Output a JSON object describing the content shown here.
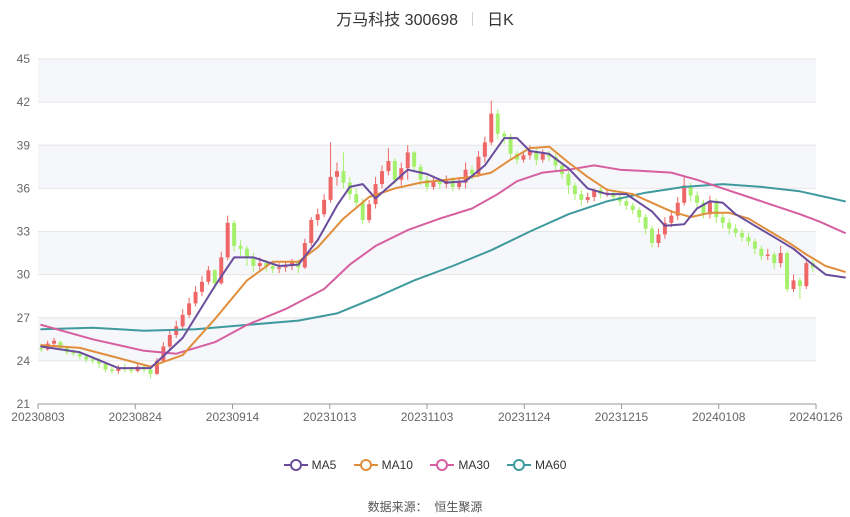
{
  "chart_data": {
    "type": "candlestick",
    "title": "万马科技 300698",
    "subtitle": "日K",
    "source_label": "数据来源：",
    "source_value": "恒生聚源",
    "ylim": [
      21,
      45
    ],
    "yticks": [
      21,
      24,
      27,
      30,
      33,
      36,
      39,
      42,
      45
    ],
    "xticks": [
      "20230803",
      "20230824",
      "20230914",
      "20231013",
      "20231103",
      "20231124",
      "20231215",
      "20240108",
      "20240126"
    ],
    "colors": {
      "up": "#ee6666",
      "down": "#a4f06a",
      "MA5": "#6a4c9c",
      "MA10": "#e08e3c",
      "MA30": "#d65fa0",
      "MA60": "#3f9a9e",
      "grid": "#e6e6e6",
      "band": "#f6f7fb"
    },
    "candles": [
      [
        24.9,
        24.8,
        25.2,
        24.6
      ],
      [
        24.8,
        25.2,
        25.4,
        24.7
      ],
      [
        25.2,
        25.4,
        25.6,
        25.0
      ],
      [
        25.3,
        24.9,
        25.4,
        24.8
      ],
      [
        24.9,
        24.6,
        25.0,
        24.4
      ],
      [
        24.6,
        24.5,
        24.8,
        24.3
      ],
      [
        24.5,
        24.3,
        24.7,
        24.1
      ],
      [
        24.3,
        24.1,
        24.5,
        23.9
      ],
      [
        24.1,
        24.0,
        24.3,
        23.8
      ],
      [
        24.0,
        23.8,
        24.2,
        23.5
      ],
      [
        23.8,
        23.4,
        23.9,
        23.2
      ],
      [
        23.4,
        23.3,
        23.6,
        23.1
      ],
      [
        23.3,
        23.5,
        23.7,
        23.1
      ],
      [
        23.5,
        23.4,
        23.8,
        23.2
      ],
      [
        23.4,
        23.3,
        23.6,
        23.1
      ],
      [
        23.3,
        23.6,
        23.9,
        23.2
      ],
      [
        23.6,
        23.4,
        23.8,
        23.2
      ],
      [
        23.4,
        23.1,
        23.5,
        22.8
      ],
      [
        23.1,
        24.0,
        24.2,
        23.0
      ],
      [
        24.0,
        25.0,
        25.3,
        23.9
      ],
      [
        25.0,
        25.8,
        26.2,
        24.8
      ],
      [
        25.8,
        26.4,
        26.8,
        25.6
      ],
      [
        26.4,
        27.2,
        27.6,
        26.2
      ],
      [
        27.2,
        28.0,
        28.4,
        27.0
      ],
      [
        28.0,
        28.8,
        29.2,
        27.8
      ],
      [
        28.8,
        29.5,
        29.9,
        28.5
      ],
      [
        29.5,
        30.3,
        30.6,
        29.3
      ],
      [
        30.3,
        29.4,
        30.4,
        29.0
      ],
      [
        29.4,
        31.2,
        31.6,
        29.3
      ],
      [
        31.2,
        33.6,
        34.1,
        31.0
      ],
      [
        33.6,
        32.0,
        33.8,
        31.6
      ],
      [
        32.0,
        31.8,
        32.4,
        31.3
      ],
      [
        31.8,
        31.2,
        32.0,
        30.6
      ],
      [
        31.2,
        30.6,
        31.5,
        30.2
      ],
      [
        30.6,
        30.8,
        31.2,
        30.3
      ],
      [
        30.8,
        30.6,
        31.0,
        30.2
      ],
      [
        30.6,
        30.4,
        30.9,
        30.1
      ],
      [
        30.4,
        30.5,
        30.8,
        30.1
      ],
      [
        30.5,
        30.6,
        30.9,
        30.2
      ],
      [
        30.6,
        30.9,
        31.1,
        30.3
      ],
      [
        30.9,
        30.5,
        31.0,
        30.1
      ],
      [
        30.5,
        32.2,
        32.5,
        30.4
      ],
      [
        32.2,
        33.8,
        34.0,
        32.0
      ],
      [
        33.8,
        34.2,
        34.6,
        33.4
      ],
      [
        34.2,
        35.2,
        35.6,
        34.0
      ],
      [
        35.2,
        36.8,
        39.2,
        35.0
      ],
      [
        36.8,
        37.2,
        37.8,
        36.2
      ],
      [
        37.2,
        36.4,
        38.5,
        36.0
      ],
      [
        36.4,
        35.6,
        36.8,
        35.2
      ],
      [
        35.6,
        35.0,
        36.0,
        34.6
      ],
      [
        35.0,
        33.8,
        35.3,
        33.5
      ],
      [
        33.8,
        34.9,
        35.2,
        33.6
      ],
      [
        34.9,
        36.3,
        36.8,
        34.6
      ],
      [
        36.3,
        37.2,
        37.6,
        36.0
      ],
      [
        37.2,
        37.9,
        38.8,
        36.9
      ],
      [
        37.9,
        36.6,
        38.1,
        36.3
      ],
      [
        36.6,
        37.4,
        37.8,
        36.2
      ],
      [
        37.4,
        38.5,
        39.0,
        36.6
      ],
      [
        38.5,
        37.5,
        38.6,
        37.1
      ],
      [
        37.5,
        36.6,
        37.7,
        36.2
      ],
      [
        36.6,
        36.1,
        36.9,
        35.8
      ],
      [
        36.1,
        36.5,
        36.9,
        35.9
      ],
      [
        36.5,
        36.3,
        36.7,
        36.0
      ],
      [
        36.3,
        36.6,
        36.9,
        36.0
      ],
      [
        36.6,
        36.1,
        36.8,
        35.8
      ],
      [
        36.1,
        36.4,
        36.8,
        35.9
      ],
      [
        36.4,
        37.3,
        37.8,
        36.0
      ],
      [
        37.3,
        37.0,
        37.6,
        36.6
      ],
      [
        37.0,
        38.2,
        38.6,
        36.8
      ],
      [
        38.2,
        39.2,
        39.6,
        37.8
      ],
      [
        39.2,
        41.2,
        42.1,
        39.0
      ],
      [
        41.2,
        39.8,
        41.5,
        39.4
      ],
      [
        39.8,
        39.6,
        40.0,
        39.1
      ],
      [
        39.6,
        38.4,
        39.8,
        38.0
      ],
      [
        38.4,
        38.0,
        38.6,
        37.7
      ],
      [
        38.0,
        38.3,
        38.6,
        37.8
      ],
      [
        38.3,
        38.6,
        39.0,
        38.0
      ],
      [
        38.6,
        38.0,
        38.8,
        37.6
      ],
      [
        38.0,
        38.4,
        38.7,
        37.8
      ],
      [
        38.4,
        38.2,
        38.6,
        37.9
      ],
      [
        38.2,
        37.6,
        38.4,
        37.2
      ],
      [
        37.6,
        37.0,
        37.8,
        36.7
      ],
      [
        37.0,
        36.2,
        37.2,
        35.6
      ],
      [
        36.2,
        35.6,
        36.4,
        35.2
      ],
      [
        35.6,
        35.2,
        35.9,
        34.8
      ],
      [
        35.2,
        35.4,
        35.7,
        35.0
      ],
      [
        35.4,
        35.9,
        36.0,
        35.1
      ],
      [
        35.9,
        35.6,
        36.1,
        35.3
      ],
      [
        35.6,
        35.7,
        36.0,
        35.4
      ],
      [
        35.7,
        35.4,
        35.9,
        35.1
      ],
      [
        35.4,
        35.1,
        35.6,
        34.8
      ],
      [
        35.1,
        34.8,
        35.3,
        34.5
      ],
      [
        34.8,
        34.5,
        35.0,
        34.2
      ],
      [
        34.5,
        34.0,
        34.7,
        33.6
      ],
      [
        34.0,
        33.2,
        34.2,
        32.8
      ],
      [
        33.2,
        32.2,
        33.4,
        31.9
      ],
      [
        32.2,
        32.8,
        33.2,
        31.9
      ],
      [
        32.8,
        33.6,
        34.0,
        32.5
      ],
      [
        33.6,
        34.1,
        34.5,
        33.3
      ],
      [
        34.1,
        35.0,
        35.4,
        33.8
      ],
      [
        35.0,
        36.2,
        36.8,
        34.8
      ],
      [
        36.2,
        35.5,
        36.4,
        35.1
      ],
      [
        35.5,
        35.0,
        35.8,
        34.6
      ],
      [
        35.0,
        34.2,
        35.2,
        33.9
      ],
      [
        34.2,
        35.1,
        35.5,
        33.9
      ],
      [
        35.1,
        34.0,
        35.3,
        33.6
      ],
      [
        34.0,
        33.6,
        34.3,
        33.2
      ],
      [
        33.6,
        33.2,
        33.9,
        32.8
      ],
      [
        33.2,
        32.9,
        33.5,
        32.6
      ],
      [
        32.9,
        32.6,
        33.2,
        32.3
      ],
      [
        32.6,
        32.3,
        32.9,
        32.0
      ],
      [
        32.3,
        31.8,
        32.5,
        31.4
      ],
      [
        31.8,
        31.3,
        32.0,
        31.0
      ],
      [
        31.3,
        31.4,
        31.8,
        31.0
      ],
      [
        31.4,
        30.8,
        31.6,
        30.4
      ],
      [
        30.8,
        31.5,
        32.0,
        30.5
      ],
      [
        31.5,
        29.0,
        31.6,
        28.8
      ],
      [
        29.0,
        29.6,
        30.0,
        28.8
      ],
      [
        29.6,
        29.2,
        29.8,
        28.3
      ],
      [
        29.2,
        30.8,
        31.1,
        29.0
      ],
      [
        30.8,
        30.5,
        31.0,
        30.2
      ]
    ],
    "ma": {
      "MA5": [
        [
          0,
          25.0
        ],
        [
          6,
          24.6
        ],
        [
          12,
          23.5
        ],
        [
          17,
          23.5
        ],
        [
          22,
          25.6
        ],
        [
          27,
          29.2
        ],
        [
          30,
          31.2
        ],
        [
          33,
          31.2
        ],
        [
          37,
          30.6
        ],
        [
          40,
          30.7
        ],
        [
          43,
          32.4
        ],
        [
          46,
          34.8
        ],
        [
          48,
          36.1
        ],
        [
          50,
          36.3
        ],
        [
          52,
          35.3
        ],
        [
          55,
          36.5
        ],
        [
          57,
          37.3
        ],
        [
          60,
          37.0
        ],
        [
          63,
          36.4
        ],
        [
          66,
          36.5
        ],
        [
          69,
          37.6
        ],
        [
          72,
          39.5
        ],
        [
          74,
          39.5
        ],
        [
          76,
          38.6
        ],
        [
          79,
          38.4
        ],
        [
          82,
          37.4
        ],
        [
          85,
          36.0
        ],
        [
          88,
          35.6
        ],
        [
          91,
          35.6
        ],
        [
          95,
          34.4
        ],
        [
          97,
          33.4
        ],
        [
          100,
          33.5
        ],
        [
          102,
          34.6
        ],
        [
          104,
          35.1
        ],
        [
          106,
          35.0
        ],
        [
          108,
          34.2
        ],
        [
          111,
          33.4
        ],
        [
          114,
          32.6
        ],
        [
          117,
          31.8
        ],
        [
          120,
          30.7
        ],
        [
          122,
          30.0
        ],
        [
          125,
          29.8
        ]
      ],
      "MA10": [
        [
          0,
          25.1
        ],
        [
          6,
          24.9
        ],
        [
          12,
          24.2
        ],
        [
          17,
          23.6
        ],
        [
          22,
          24.4
        ],
        [
          27,
          26.9
        ],
        [
          32,
          29.6
        ],
        [
          36,
          30.9
        ],
        [
          40,
          30.9
        ],
        [
          43,
          31.9
        ],
        [
          47,
          33.9
        ],
        [
          51,
          35.4
        ],
        [
          55,
          36.0
        ],
        [
          59,
          36.4
        ],
        [
          63,
          36.6
        ],
        [
          67,
          36.8
        ],
        [
          70,
          37.1
        ],
        [
          73,
          38.0
        ],
        [
          76,
          38.8
        ],
        [
          79,
          38.9
        ],
        [
          82,
          37.8
        ],
        [
          85,
          36.8
        ],
        [
          88,
          35.9
        ],
        [
          92,
          35.6
        ],
        [
          95,
          35.0
        ],
        [
          98,
          34.4
        ],
        [
          101,
          34.0
        ],
        [
          104,
          34.3
        ],
        [
          107,
          34.3
        ],
        [
          110,
          33.9
        ],
        [
          113,
          33.1
        ],
        [
          116,
          32.3
        ],
        [
          119,
          31.4
        ],
        [
          122,
          30.6
        ],
        [
          125,
          30.2
        ]
      ],
      "MA30": [
        [
          0,
          26.5
        ],
        [
          8,
          25.5
        ],
        [
          16,
          24.7
        ],
        [
          21,
          24.5
        ],
        [
          27,
          25.3
        ],
        [
          32,
          26.5
        ],
        [
          38,
          27.6
        ],
        [
          44,
          29.0
        ],
        [
          48,
          30.7
        ],
        [
          52,
          32.0
        ],
        [
          57,
          33.1
        ],
        [
          62,
          33.9
        ],
        [
          67,
          34.6
        ],
        [
          71,
          35.6
        ],
        [
          74,
          36.5
        ],
        [
          78,
          37.1
        ],
        [
          82,
          37.3
        ],
        [
          86,
          37.6
        ],
        [
          90,
          37.3
        ],
        [
          94,
          37.2
        ],
        [
          98,
          37.1
        ],
        [
          102,
          36.6
        ],
        [
          106,
          36.0
        ],
        [
          110,
          35.4
        ],
        [
          114,
          34.8
        ],
        [
          118,
          34.2
        ],
        [
          121,
          33.7
        ],
        [
          125,
          32.9
        ]
      ],
      "MA60": [
        [
          0,
          26.2
        ],
        [
          8,
          26.3
        ],
        [
          16,
          26.1
        ],
        [
          24,
          26.2
        ],
        [
          32,
          26.5
        ],
        [
          40,
          26.8
        ],
        [
          46,
          27.3
        ],
        [
          52,
          28.4
        ],
        [
          58,
          29.6
        ],
        [
          64,
          30.6
        ],
        [
          70,
          31.7
        ],
        [
          76,
          33.0
        ],
        [
          82,
          34.2
        ],
        [
          88,
          35.1
        ],
        [
          94,
          35.7
        ],
        [
          100,
          36.1
        ],
        [
          106,
          36.3
        ],
        [
          112,
          36.1
        ],
        [
          118,
          35.8
        ],
        [
          122,
          35.4
        ],
        [
          125,
          35.1
        ]
      ]
    },
    "legend": [
      "MA5",
      "MA10",
      "MA30",
      "MA60"
    ]
  }
}
